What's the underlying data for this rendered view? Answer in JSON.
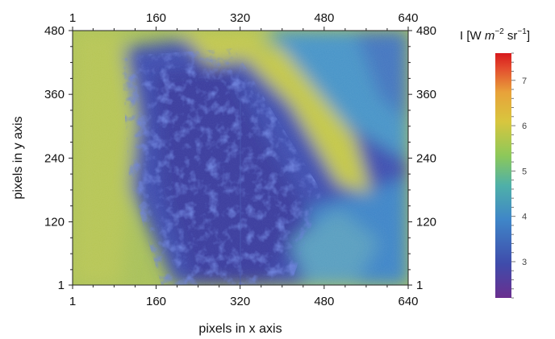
{
  "chart_data": {
    "type": "heatmap",
    "title": "",
    "xlabel": "pixels in x axis",
    "ylabel": "pixels in y axis",
    "x_ticks": [
      1,
      160,
      320,
      480,
      640
    ],
    "y_ticks": [
      1,
      120,
      240,
      360,
      480
    ],
    "xlim": [
      1,
      640
    ],
    "ylim": [
      1,
      480
    ],
    "colorbar": {
      "title_prefix": "I [W ",
      "title_m": "m",
      "title_m_exp": "−2",
      "title_sr": " sr",
      "title_sr_exp": "−1",
      "title_suffix": "]",
      "ticks": [
        3,
        4,
        5,
        6,
        7
      ],
      "range": [
        2.2,
        7.6
      ],
      "colors": [
        "#6a2f8f",
        "#3f4cab",
        "#3f86c8",
        "#4fb0a8",
        "#8cc85a",
        "#d8c63e",
        "#e8a23a",
        "#e34b2e",
        "#d7191c"
      ]
    },
    "grid": false
  }
}
